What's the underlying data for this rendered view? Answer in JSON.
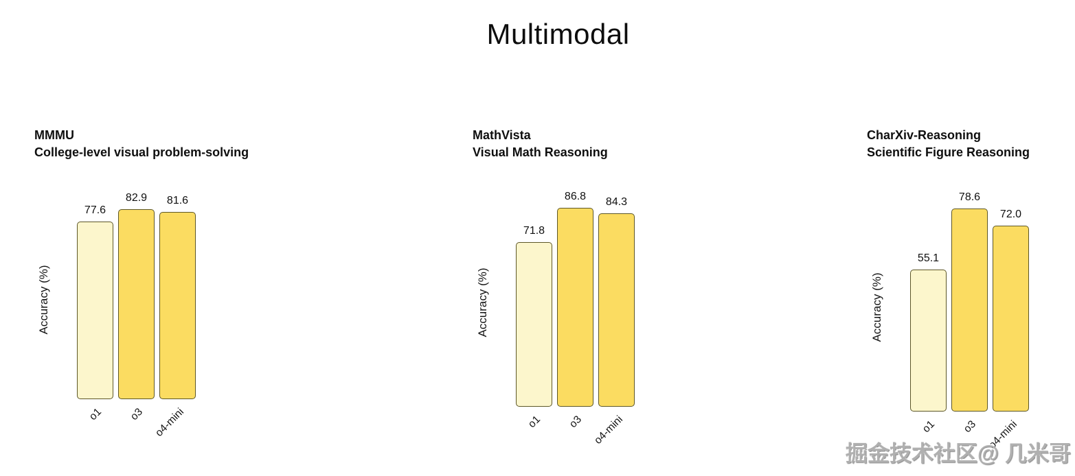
{
  "page_title": "Multimodal",
  "watermark_text": "掘金技术社区@ 几米哥",
  "colors": {
    "bar_fill_o1": "#FCF6CC",
    "bar_fill_gold": "#FBDC61",
    "bar_border": "#5C5626",
    "text": "#111111",
    "watermark_gray": "#B0B0B0",
    "background": "#FFFFFF"
  },
  "chart_data": [
    {
      "type": "bar",
      "title": "MMMU",
      "subtitle": "College-level visual problem-solving",
      "ylabel": "Accuracy (%)",
      "xlabel": "",
      "categories": [
        "o1",
        "o3",
        "o4-mini"
      ],
      "values": [
        77.6,
        82.9,
        81.6
      ],
      "value_labels": [
        "77.6",
        "82.9",
        "81.6"
      ],
      "bar_colors": [
        "#FCF6CC",
        "#FBDC61",
        "#FBDC61"
      ],
      "ylim": [
        0,
        90
      ],
      "grid": "off",
      "legend": "none",
      "axis_ticks_visible": false
    },
    {
      "type": "bar",
      "title": "MathVista",
      "subtitle": "Visual Math Reasoning",
      "ylabel": "Accuracy (%)",
      "xlabel": "",
      "categories": [
        "o1",
        "o3",
        "o4-mini"
      ],
      "values": [
        71.8,
        86.8,
        84.3
      ],
      "value_labels": [
        "71.8",
        "86.8",
        "84.3"
      ],
      "bar_colors": [
        "#FCF6CC",
        "#FBDC61",
        "#FBDC61"
      ],
      "ylim": [
        0,
        90
      ],
      "grid": "off",
      "legend": "none",
      "axis_ticks_visible": false
    },
    {
      "type": "bar",
      "title": "CharXiv-Reasoning",
      "subtitle": "Scientific Figure Reasoning",
      "ylabel": "Accuracy (%)",
      "xlabel": "",
      "categories": [
        "o1",
        "o3",
        "o4-mini"
      ],
      "values": [
        55.1,
        78.6,
        72.0
      ],
      "value_labels": [
        "55.1",
        "78.6",
        "72.0"
      ],
      "bar_colors": [
        "#FCF6CC",
        "#FBDC61",
        "#FBDC61"
      ],
      "ylim": [
        0,
        82
      ],
      "grid": "off",
      "legend": "none",
      "axis_ticks_visible": false
    }
  ]
}
